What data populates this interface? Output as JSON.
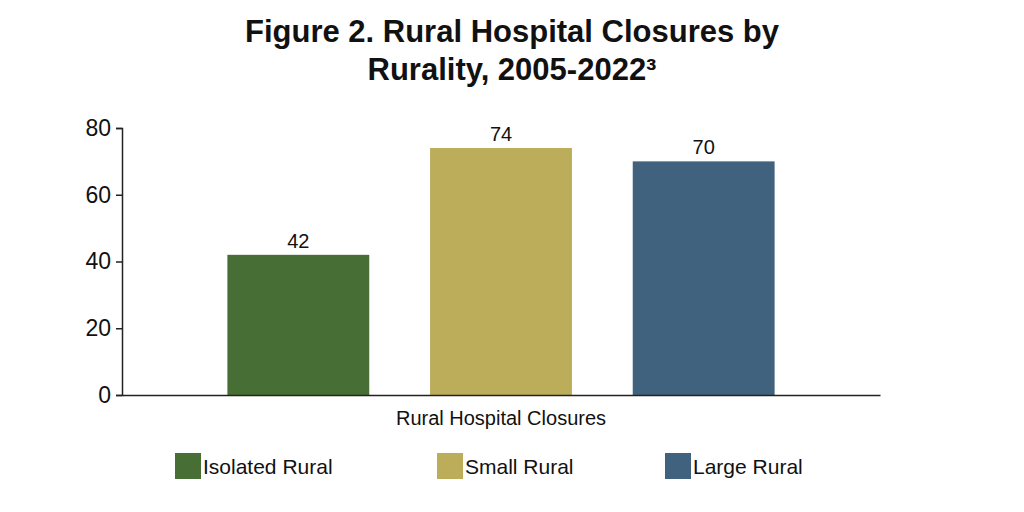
{
  "chart_data": {
    "type": "bar",
    "title": "Figure 2. Rural Hospital Closures by Rurality, 2005-2022³",
    "x_label": "Rural Hospital Closures",
    "categories": [
      "Isolated Rural",
      "Small Rural",
      "Large Rural"
    ],
    "values": [
      42,
      74,
      70
    ],
    "colors": [
      "#476f35",
      "#bcad5a",
      "#41627e"
    ],
    "ylim": [
      0,
      80
    ],
    "yticks": [
      0,
      20,
      40,
      60,
      80
    ],
    "grid": false,
    "legend": "bottom",
    "data_labels": true,
    "tick_labels": "y"
  }
}
